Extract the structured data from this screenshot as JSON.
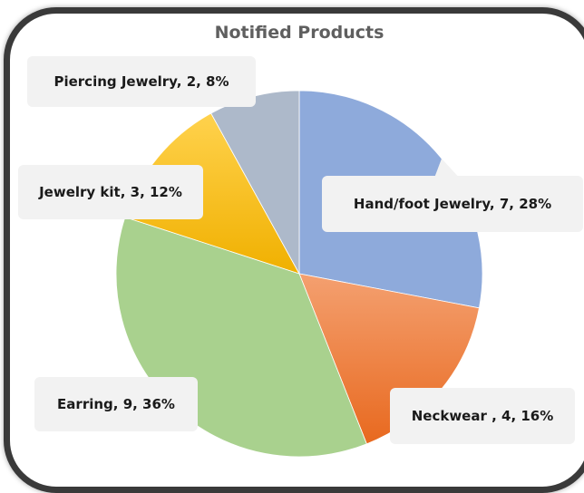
{
  "chart_data": {
    "type": "pie",
    "title": "Notified Products",
    "slices": [
      {
        "name": "Hand/foot Jewelry",
        "value": 7,
        "percent": "28%",
        "label": "Hand/foot Jewelry, 7, 28%",
        "color": "#8eaadb"
      },
      {
        "name": "Neckwear ",
        "value": 4,
        "percent": "16%",
        "label": "Neckwear , 4, 16%",
        "color": "#ed7d31"
      },
      {
        "name": "Earring",
        "value": 9,
        "percent": "36%",
        "label": "Earring, 9, 36%",
        "color": "#a9d18e"
      },
      {
        "name": "Jewelry kit",
        "value": 3,
        "percent": "12%",
        "label": "Jewelry kit, 3, 12%",
        "color": "#ffc000"
      },
      {
        "name": "Piercing Jewelry",
        "value": 2,
        "percent": "8%",
        "label": "Piercing Jewelry, 2, 8%",
        "color": "#adb9ca"
      }
    ],
    "legend": "none",
    "grid": false
  }
}
